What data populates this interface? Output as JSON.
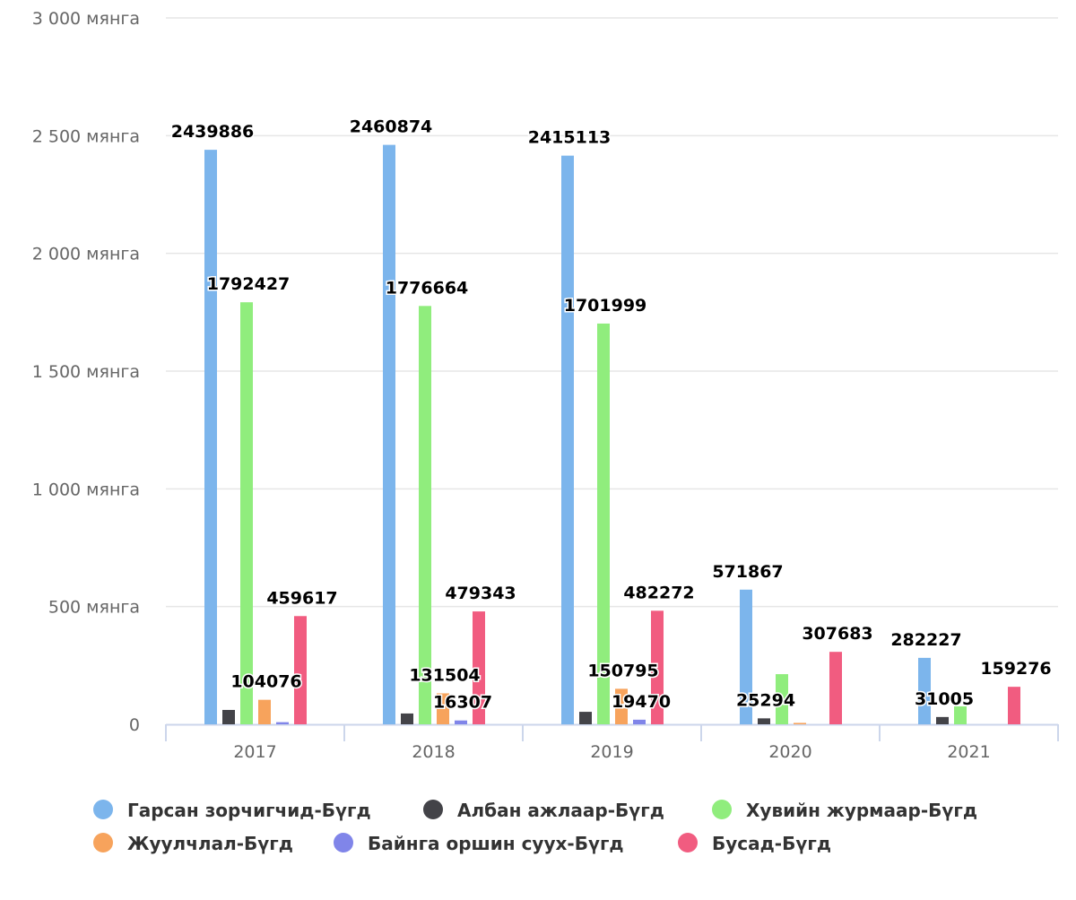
{
  "chart_data": {
    "type": "bar",
    "categories": [
      "2017",
      "2018",
      "2019",
      "2020",
      "2021"
    ],
    "ylim": [
      0,
      3000000
    ],
    "yticks": [
      {
        "value": 0,
        "label": "0"
      },
      {
        "value": 500000,
        "label": "500 мянга"
      },
      {
        "value": 1000000,
        "label": "1 000 мянга"
      },
      {
        "value": 1500000,
        "label": "1 500 мянга"
      },
      {
        "value": 2000000,
        "label": "2 000 мянга"
      },
      {
        "value": 2500000,
        "label": "2 500 мянга"
      },
      {
        "value": 3000000,
        "label": "3 000 мянга"
      }
    ],
    "grid": true,
    "legend_position": "bottom",
    "series": [
      {
        "name": "Гарсан зорчигчид-Бүгд",
        "color": "#7cb5ec",
        "values": [
          2439886,
          2460874,
          2415113,
          571867,
          282227
        ],
        "labels": [
          "2439886",
          "2460874",
          "2415113",
          "571867",
          "282227"
        ]
      },
      {
        "name": "Албан ажлаар-Бүгд",
        "color": "#434348",
        "values": [
          61000,
          46000,
          53000,
          25294,
          31005
        ],
        "labels": [
          null,
          null,
          null,
          "25294",
          "31005"
        ]
      },
      {
        "name": "Хувийн журмаар-Бүгд",
        "color": "#90ed7d",
        "values": [
          1792427,
          1776664,
          1701999,
          213000,
          76000
        ],
        "labels": [
          "1792427",
          "1776664",
          "1701999",
          null,
          null
        ]
      },
      {
        "name": "Жуулчлал-Бүгд",
        "color": "#f7a35c",
        "values": [
          104076,
          131504,
          150795,
          6000,
          0
        ],
        "labels": [
          "104076",
          "131504",
          "150795",
          null,
          null
        ]
      },
      {
        "name": "Байнга оршин суух-Бүгд",
        "color": "#8085e9",
        "values": [
          9000,
          16307,
          19470,
          0,
          0
        ],
        "labels": [
          null,
          "16307",
          "19470",
          null,
          null
        ]
      },
      {
        "name": "Бусад-Бүгд",
        "color": "#f15c80",
        "values": [
          459617,
          479343,
          482272,
          307683,
          159276
        ],
        "labels": [
          "459617",
          "479343",
          "482272",
          "307683",
          "159276"
        ]
      }
    ]
  }
}
